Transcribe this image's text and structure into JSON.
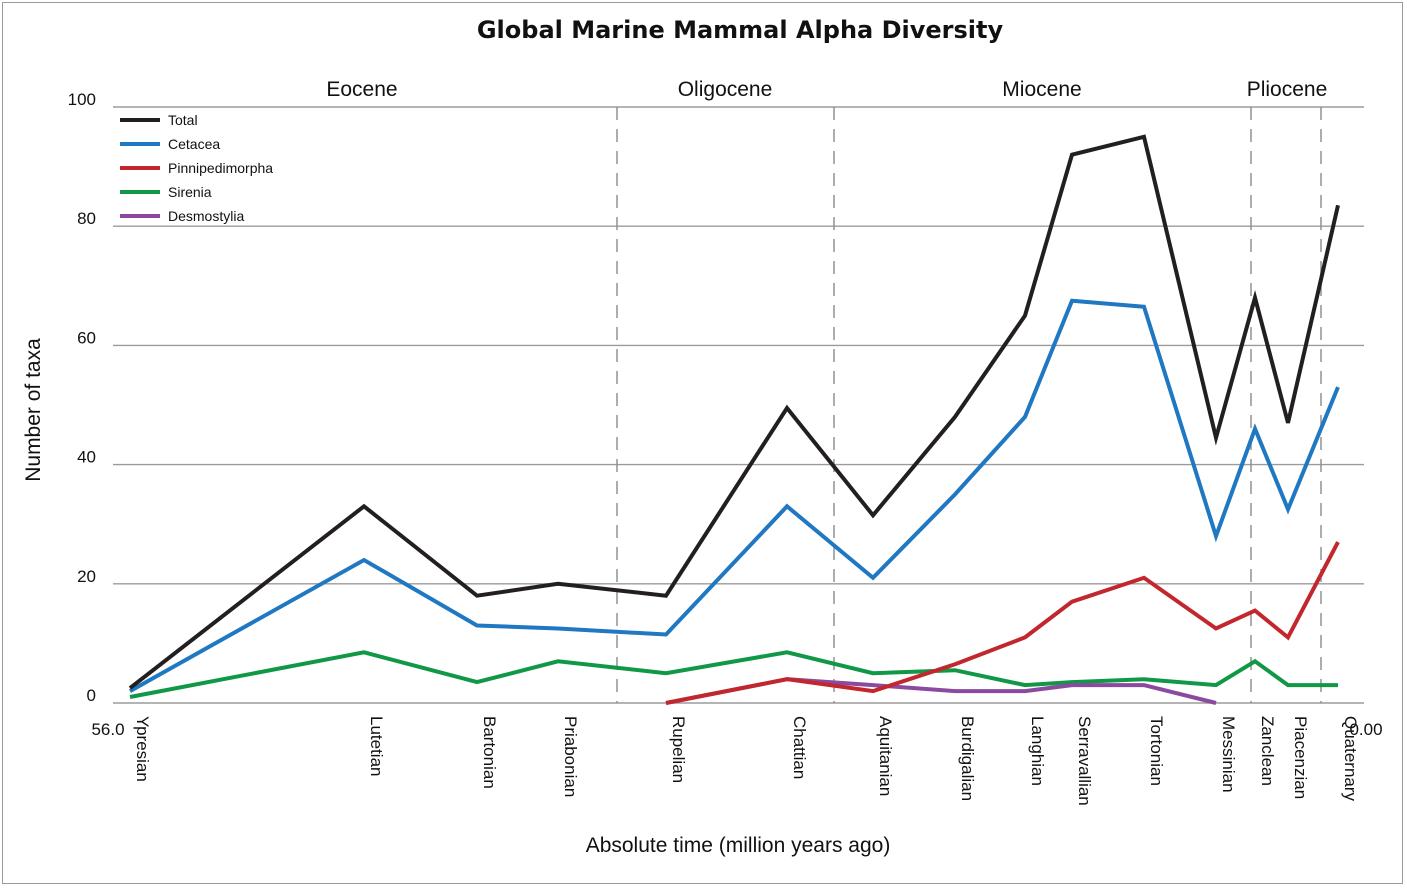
{
  "chart_data": {
    "type": "line",
    "title": "Global Marine Mammal Alpha Diversity",
    "xlabel": "Absolute time (million years ago)",
    "ylabel": "Number of taxa",
    "ylim": [
      0,
      100
    ],
    "yticks": [
      0,
      20,
      40,
      60,
      80,
      100
    ],
    "x_start_label": "56.0",
    "x_end_label": "0.00",
    "grid": true,
    "legend_position": "top-left",
    "epochs": [
      "Eocene",
      "Oligocene",
      "Miocene",
      "Pliocene"
    ],
    "categories": [
      "Ypresian",
      "Lutetian",
      "Bartonian",
      "Priabonian",
      "Rupelian",
      "Chattian",
      "Aquitanian",
      "Burdigalian",
      "Langhian",
      "Serravallian",
      "Tortonian",
      "Messinian",
      "Zanclean",
      "Piacenzian",
      "Quaternary"
    ],
    "series": [
      {
        "name": "Total",
        "color": "#231f20",
        "values": [
          2.5,
          33,
          18,
          20,
          18,
          49.5,
          31.5,
          48,
          65,
          92,
          95,
          44.5,
          68,
          47,
          83.5
        ]
      },
      {
        "name": "Cetacea",
        "color": "#1f78c1",
        "values": [
          2,
          24,
          13,
          12.5,
          11.5,
          33,
          21,
          35,
          48,
          67.5,
          66.5,
          28,
          46,
          32.5,
          53
        ]
      },
      {
        "name": "Pinnipedimorpha",
        "color": "#c1272d",
        "values": [
          null,
          null,
          null,
          null,
          0,
          4,
          2,
          6.5,
          11,
          17,
          21,
          12.5,
          15.5,
          11,
          27
        ]
      },
      {
        "name": "Sirenia",
        "color": "#119847",
        "values": [
          1,
          8.5,
          3.5,
          7,
          5,
          8.5,
          5,
          5.5,
          3,
          3.5,
          4,
          3,
          7,
          3,
          3
        ]
      },
      {
        "name": "Desmostylia",
        "color": "#8b4a9f",
        "values": [
          null,
          null,
          null,
          null,
          0,
          4,
          3,
          2,
          2,
          3,
          3,
          0,
          null,
          null,
          null
        ]
      }
    ]
  }
}
